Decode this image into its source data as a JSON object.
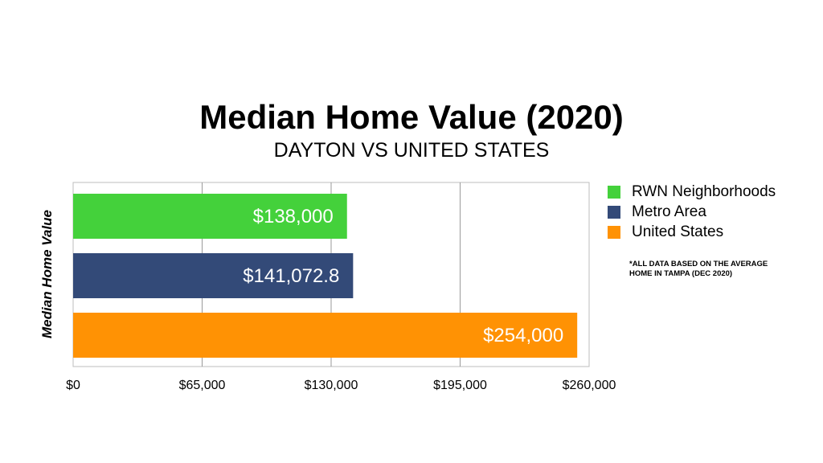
{
  "chart_data": {
    "type": "bar",
    "orientation": "horizontal",
    "title": "Median Home Value (2020)",
    "subtitle": "DAYTON VS UNITED STATES",
    "ylabel": "Median Home Value",
    "xlabel": "",
    "xlim": [
      0,
      260000
    ],
    "ticks": [
      0,
      65000,
      130000,
      195000,
      260000
    ],
    "tick_labels": [
      "$0",
      "$65,000",
      "$130,000",
      "$195,000",
      "$260,000"
    ],
    "grid": true,
    "legend_position": "right",
    "series": [
      {
        "name": "RWN Neighborhoods",
        "value": 138000,
        "label": "$138,000",
        "color": "#44d13b"
      },
      {
        "name": "Metro Area",
        "value": 141072.8,
        "label": "$141,072.8",
        "color": "#334a78"
      },
      {
        "name": "United States",
        "value": 254000,
        "label": "$254,000",
        "color": "#ff9204"
      }
    ],
    "footnote": "*ALL DATA BASED ON THE AVERAGE HOME IN TAMPA (DEC 2020)"
  }
}
